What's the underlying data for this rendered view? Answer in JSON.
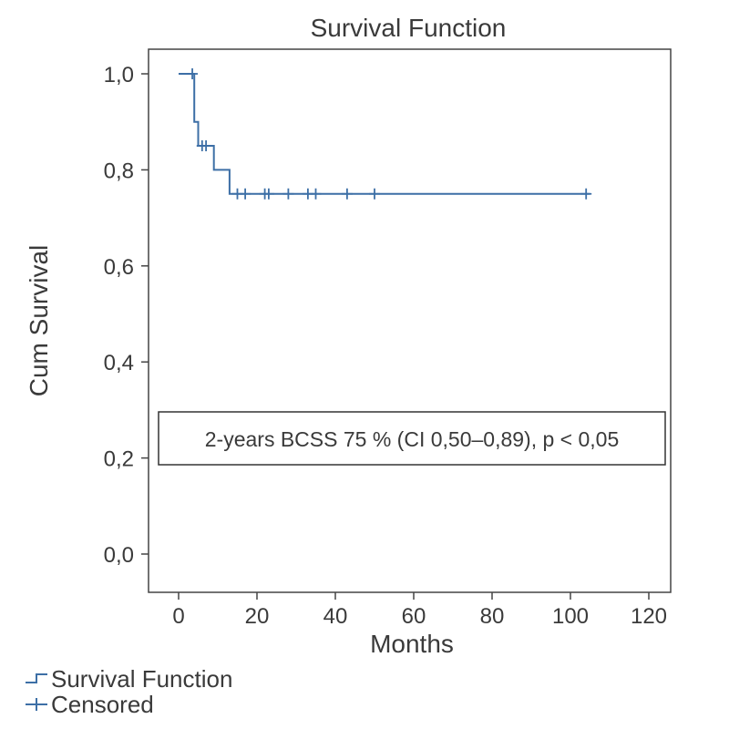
{
  "chart_data": {
    "type": "line",
    "title": "Survival Function",
    "xlabel": "Months",
    "ylabel": "Cum Survival",
    "xlim": [
      0,
      120
    ],
    "ylim": [
      0,
      1
    ],
    "xticks": [
      0,
      20,
      40,
      60,
      80,
      100,
      120
    ],
    "xtick_labels": [
      "0",
      "20",
      "40",
      "60",
      "80",
      "100",
      "120"
    ],
    "yticks": [
      0,
      0.2,
      0.4,
      0.6,
      0.8,
      1.0
    ],
    "ytick_labels": [
      "0,0",
      "0,2",
      "0,4",
      "0,6",
      "0,8",
      "1,0"
    ],
    "grid": false,
    "series": [
      {
        "name": "Survival Function",
        "step": true,
        "x": [
          0,
          4,
          4,
          5,
          5,
          9,
          9,
          13,
          13,
          105
        ],
        "y": [
          1.0,
          1.0,
          0.9,
          0.9,
          0.85,
          0.85,
          0.8,
          0.8,
          0.75,
          0.75
        ]
      },
      {
        "name": "Censored",
        "marker": "+",
        "x": [
          3.5,
          6,
          7,
          15,
          17,
          22,
          23,
          28,
          33,
          35,
          43,
          50,
          104
        ],
        "y": [
          1.0,
          0.85,
          0.85,
          0.75,
          0.75,
          0.75,
          0.75,
          0.75,
          0.75,
          0.75,
          0.75,
          0.75,
          0.75
        ]
      }
    ],
    "annotation": "2-years BCSS 75 % (CI 0,50–0,89), p < 0,05",
    "legend": {
      "placement": "bottom-left",
      "entries": [
        "Survival Function",
        "Censored"
      ]
    },
    "colors": {
      "series": "#3d6fa6",
      "axis": "#444444",
      "text": "#3a3a3a"
    }
  }
}
